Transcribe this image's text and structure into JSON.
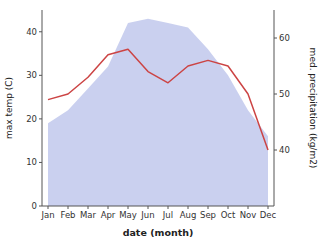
{
  "chart_data": {
    "type": "area",
    "xlabel": "date (month)",
    "ylabel": "max temp (C)",
    "y2label": "med. precipitation (kg/m2)",
    "categories": [
      "Jan",
      "Feb",
      "Mar",
      "Apr",
      "May",
      "Jun",
      "Jul",
      "Aug",
      "Sep",
      "Oct",
      "Nov",
      "Dec"
    ],
    "series": [
      {
        "type": "area",
        "color": "#b8c0ea",
        "values": [
          19,
          22,
          27,
          32,
          42,
          43,
          42,
          41,
          36,
          30,
          22,
          16
        ]
      },
      {
        "type": "line",
        "color": "#cc4444",
        "axis": "y2",
        "values": [
          49,
          50,
          53,
          57,
          58,
          54,
          52,
          55,
          56,
          55,
          50,
          40
        ]
      }
    ],
    "ylim": [
      0,
      45
    ],
    "yticks": [
      0,
      10,
      20,
      30,
      40
    ],
    "y2lim": [
      30,
      65
    ],
    "y2ticks": [
      40,
      50,
      60
    ],
    "grid": false
  }
}
